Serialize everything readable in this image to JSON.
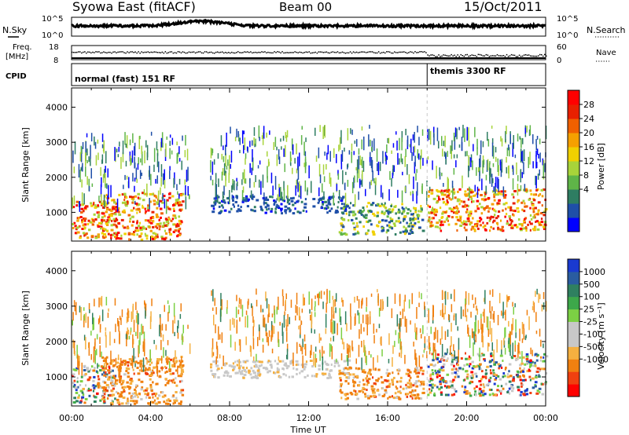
{
  "header": {
    "title": "Syowa East (fitACF)",
    "beam": "Beam 00",
    "date": "15/Oct/2011"
  },
  "top_panels": {
    "nsky_label": "N.Sky",
    "nsearch_label": "N.Search",
    "nsky_ticks": [
      "10^5",
      "10^0"
    ],
    "freq_label_1": "Freq.",
    "freq_label_2": "[MHz]",
    "freq_ticks": [
      "18",
      "8"
    ],
    "nave_label": "Nave",
    "nave_ticks": [
      "60",
      "0"
    ],
    "cpid_label": "CPID",
    "cpid_segments": [
      "normal (fast) 151 RF",
      "themis 3300 RF"
    ],
    "cpid_switch_hour": 18.0
  },
  "chart_data": [
    {
      "type": "heatmap",
      "quantity": "Power",
      "ylabel": "Slant Range [km]",
      "xlabel": "Time UT",
      "x_ticks": [
        "00:00",
        "04:00",
        "08:00",
        "12:00",
        "16:00",
        "20:00",
        "00:00"
      ],
      "xlim_hours": [
        0,
        24
      ],
      "y_ticks": [
        1000,
        2000,
        3000,
        4000
      ],
      "ylim": [
        180,
        4550
      ],
      "colorbar": {
        "label": "Power [dB]",
        "ticks": [
          "28",
          "24",
          "20",
          "16",
          "12",
          "8",
          "4"
        ],
        "colors": [
          "#0000ff",
          "#1f4fa8",
          "#2e7d62",
          "#5fb548",
          "#a8d43a",
          "#f0d000",
          "#f5a000",
          "#f06000",
          "#e82000",
          "#ff0000"
        ]
      },
      "echo_regions": [
        {
          "t0": 0.0,
          "t1": 2.2,
          "r0": 300,
          "r1": 1350,
          "level": "high"
        },
        {
          "t0": 1.5,
          "t1": 5.6,
          "r0": 250,
          "r1": 1600,
          "level": "high"
        },
        {
          "t0": 0.0,
          "t1": 6.0,
          "r0": 1300,
          "r1": 3300,
          "level": "scatter"
        },
        {
          "t0": 7.0,
          "t1": 14.0,
          "r0": 1000,
          "r1": 1500,
          "level": "low"
        },
        {
          "t0": 7.0,
          "t1": 18.0,
          "r0": 1500,
          "r1": 3500,
          "level": "scatter"
        },
        {
          "t0": 13.5,
          "t1": 17.8,
          "r0": 400,
          "r1": 1300,
          "level": "mid"
        },
        {
          "t0": 18.0,
          "t1": 24.0,
          "r0": 500,
          "r1": 1700,
          "level": "high"
        },
        {
          "t0": 18.0,
          "t1": 24.0,
          "r0": 1700,
          "r1": 3500,
          "level": "scatter"
        }
      ]
    },
    {
      "type": "heatmap",
      "quantity": "Velocity",
      "ylabel": "Slant Range [km]",
      "xlabel": "Time UT",
      "x_ticks": [
        "00:00",
        "04:00",
        "08:00",
        "12:00",
        "16:00",
        "20:00",
        "00:00"
      ],
      "xlim_hours": [
        0,
        24
      ],
      "y_ticks": [
        1000,
        2000,
        3000,
        4000
      ],
      "ylim": [
        180,
        4550
      ],
      "colorbar": {
        "label": "Velocity [m s⁻¹]",
        "ticks": [
          "1000",
          "500",
          "100",
          "25",
          "-25",
          "-100",
          "-500",
          "-1000"
        ],
        "colors": [
          "#ff0000",
          "#f04010",
          "#f08010",
          "#f5b040",
          "#c8c8c8",
          "#c8c8c8",
          "#7cd044",
          "#3da84a",
          "#2f8060",
          "#2a5ca0",
          "#1a3ad0"
        ]
      },
      "echo_regions": [
        {
          "t0": 0.0,
          "t1": 2.2,
          "r0": 300,
          "r1": 1350,
          "level": "mixed"
        },
        {
          "t0": 1.5,
          "t1": 5.6,
          "r0": 250,
          "r1": 1600,
          "level": "neg"
        },
        {
          "t0": 0.0,
          "t1": 6.0,
          "r0": 1300,
          "r1": 3300,
          "level": "scatter"
        },
        {
          "t0": 7.0,
          "t1": 14.0,
          "r0": 1000,
          "r1": 1500,
          "level": "zero"
        },
        {
          "t0": 7.0,
          "t1": 18.0,
          "r0": 1500,
          "r1": 3500,
          "level": "scatter"
        },
        {
          "t0": 13.5,
          "t1": 17.8,
          "r0": 400,
          "r1": 1300,
          "level": "neg"
        },
        {
          "t0": 18.0,
          "t1": 24.0,
          "r0": 500,
          "r1": 1700,
          "level": "mixed"
        },
        {
          "t0": 18.0,
          "t1": 24.0,
          "r0": 1700,
          "r1": 3500,
          "level": "scatter"
        }
      ]
    }
  ]
}
